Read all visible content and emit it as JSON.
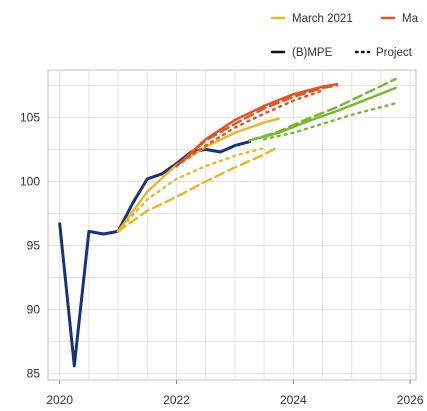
{
  "chart_data": {
    "type": "line",
    "title": "",
    "xlabel": "",
    "ylabel": "",
    "xlim": [
      2019.8,
      2026.1
    ],
    "ylim": [
      84.5,
      108.7
    ],
    "grid": true,
    "legend_position": "top, partially clipped on the right",
    "xticks": [
      2020,
      2022,
      2024,
      2026
    ],
    "yticks": [
      85,
      90,
      95,
      100,
      105
    ],
    "legend": [
      {
        "label": "March 2021",
        "style": "solid",
        "color": "#f0b323"
      },
      {
        "label": "Ma",
        "style": "solid",
        "color": "#e2531f"
      },
      {
        "label": "(B)MPE",
        "style": "solid",
        "color": "#111111"
      },
      {
        "label": "Project",
        "style": "dotted",
        "color": "#111111"
      }
    ],
    "series": [
      {
        "color": "#17347a",
        "style": "solid",
        "x": [
          2020.0,
          2020.25,
          2020.5,
          2020.75,
          2021.0,
          2021.25,
          2021.5,
          2021.75,
          2022.0,
          2022.25,
          2022.5,
          2022.75,
          2023.0,
          2023.25
        ],
        "y": [
          96.7,
          85.6,
          96.1,
          95.9,
          96.1,
          98.3,
          100.2,
          100.6,
          101.4,
          102.3,
          102.5,
          102.3,
          102.8,
          103.1
        ]
      },
      {
        "color": "#f0b323",
        "style": "solid",
        "x": [
          2021.0,
          2021.5,
          2022.0,
          2022.5,
          2023.0,
          2023.5,
          2023.75
        ],
        "y": [
          96.1,
          99.2,
          101.3,
          102.7,
          103.8,
          104.6,
          104.9
        ]
      },
      {
        "color": "#f0b323",
        "style": "dashed",
        "x": [
          2021.0,
          2021.5,
          2022.0,
          2022.5,
          2023.0,
          2023.5,
          2023.75
        ],
        "y": [
          96.1,
          97.7,
          98.8,
          100.0,
          101.1,
          102.1,
          102.7
        ]
      },
      {
        "color": "#f0b323",
        "style": "dotted",
        "x": [
          2021.0,
          2021.5,
          2022.0,
          2022.5,
          2023.0,
          2023.5
        ],
        "y": [
          96.1,
          98.6,
          100.2,
          101.2,
          102.0,
          102.6
        ]
      },
      {
        "color": "#e2531f",
        "style": "solid",
        "x": [
          2022.0,
          2022.5,
          2023.0,
          2023.5,
          2024.0,
          2024.5,
          2024.75
        ],
        "y": [
          101.2,
          103.3,
          104.8,
          105.9,
          106.8,
          107.4,
          107.6
        ]
      },
      {
        "color": "#e2531f",
        "style": "dashed",
        "x": [
          2022.0,
          2022.5,
          2023.0,
          2023.5,
          2024.0,
          2024.5,
          2024.75
        ],
        "y": [
          101.2,
          103.2,
          104.5,
          105.7,
          106.6,
          107.3,
          107.5
        ]
      },
      {
        "color": "#e2531f",
        "style": "dotted",
        "x": [
          2022.0,
          2022.5,
          2023.0,
          2023.5,
          2024.0,
          2024.5
        ],
        "y": [
          101.2,
          102.8,
          104.2,
          105.3,
          106.3,
          107.1
        ]
      },
      {
        "color": "#76b82a",
        "style": "solid",
        "x": [
          2023.25,
          2023.75,
          2024.25,
          2024.75,
          2025.25,
          2025.75
        ],
        "y": [
          103.2,
          103.8,
          104.7,
          105.5,
          106.4,
          107.3
        ]
      },
      {
        "color": "#76b82a",
        "style": "dashed",
        "x": [
          2023.25,
          2023.75,
          2024.25,
          2024.75,
          2025.25,
          2025.75
        ],
        "y": [
          103.2,
          103.9,
          104.9,
          105.8,
          106.9,
          108.0
        ]
      },
      {
        "color": "#76b82a",
        "style": "dotted",
        "x": [
          2023.5,
          2024.0,
          2024.5,
          2025.0,
          2025.5,
          2025.75
        ],
        "y": [
          103.3,
          103.8,
          104.5,
          105.2,
          105.8,
          106.1
        ]
      }
    ]
  }
}
